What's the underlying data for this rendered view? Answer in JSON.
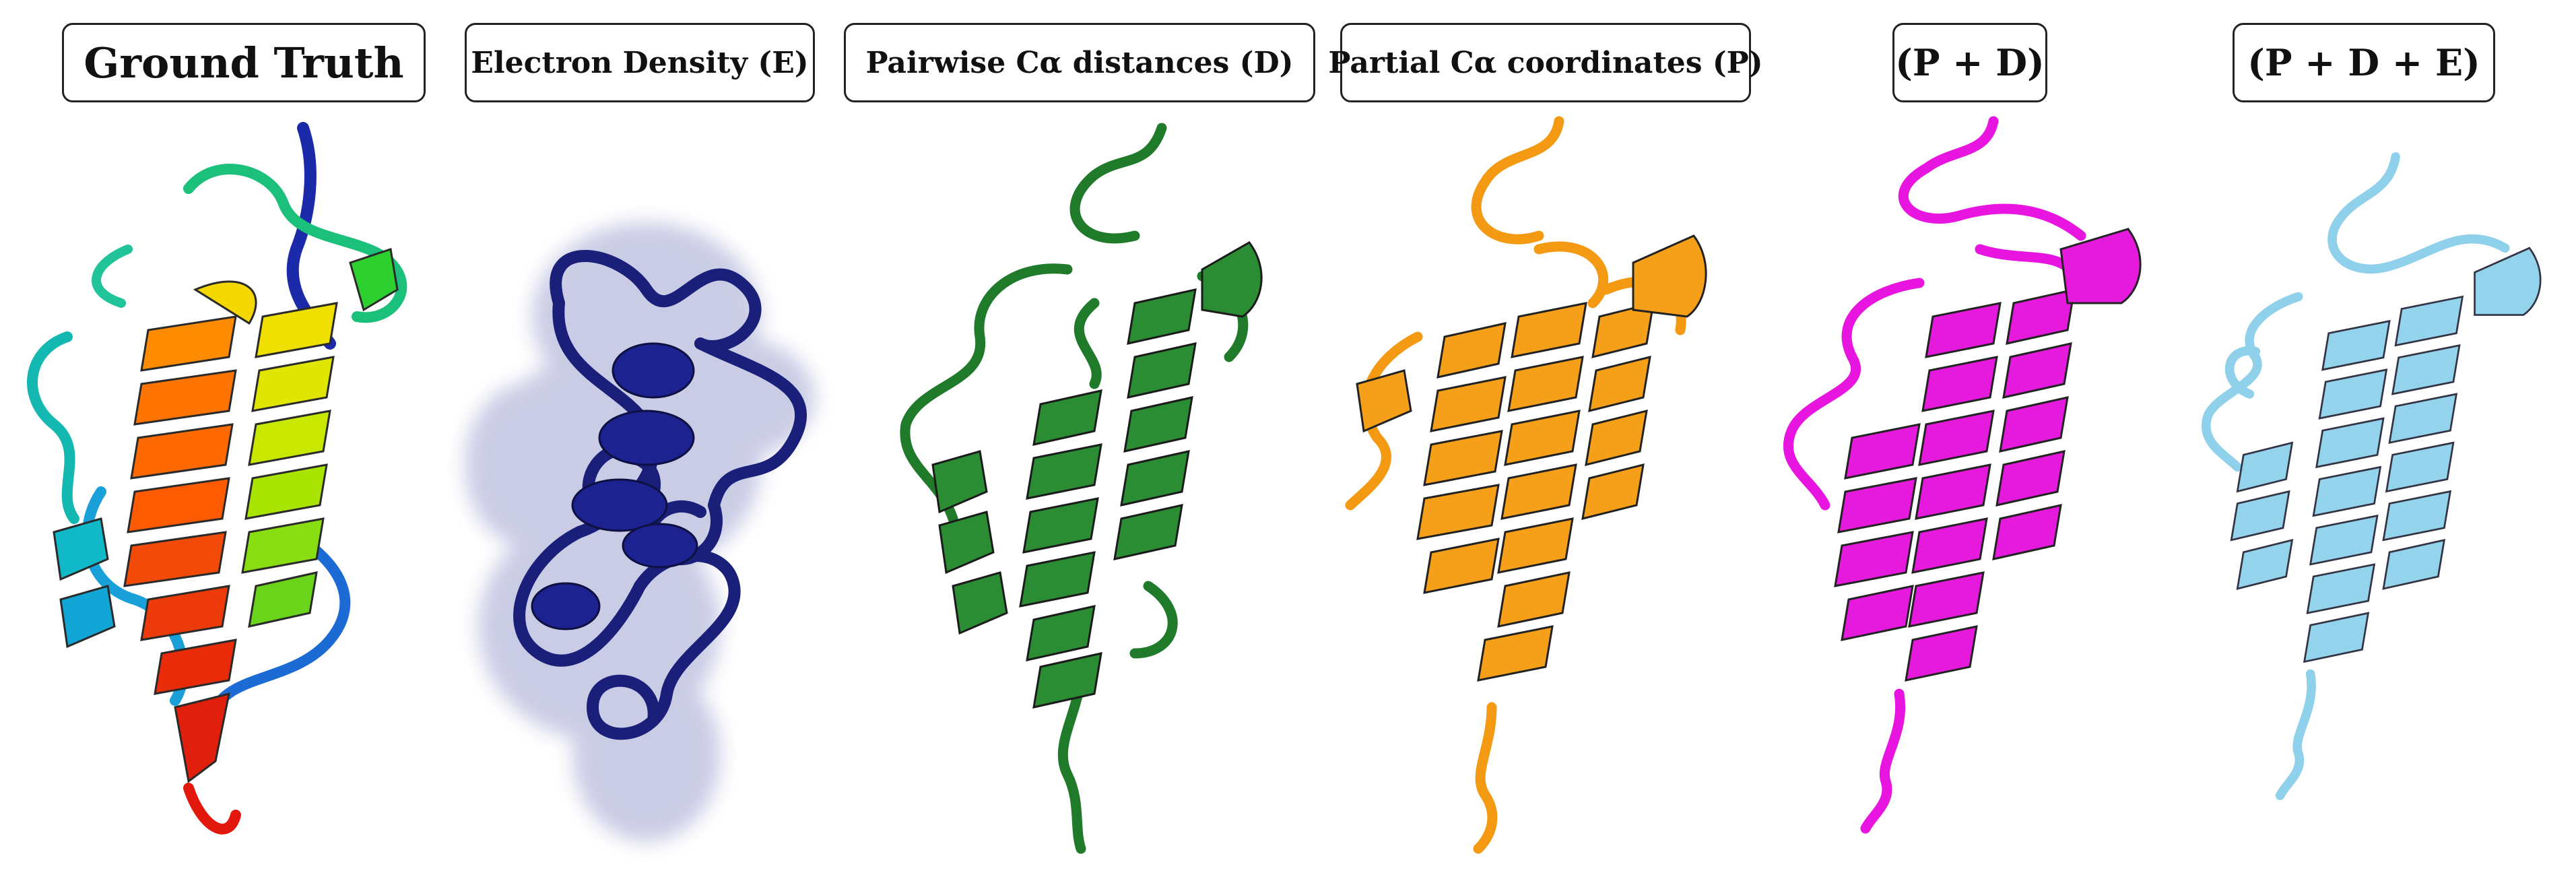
{
  "panels": [
    {
      "label": "Ground Truth"
    },
    {
      "label": "Electron Density (E)"
    },
    {
      "label": "Pairwise Cα distances (D)"
    },
    {
      "label": "Partial Cα coordinates (P)"
    },
    {
      "label": "(P + D)"
    },
    {
      "label": "(P + D + E)"
    }
  ],
  "colors": {
    "ground_truth": "rainbow",
    "electron_density": "#1a1f7a",
    "pairwise": "#1f7a2a",
    "partial": "#f39a12",
    "p_d": "#e815e0",
    "p_d_e": "#8fd0ea"
  }
}
